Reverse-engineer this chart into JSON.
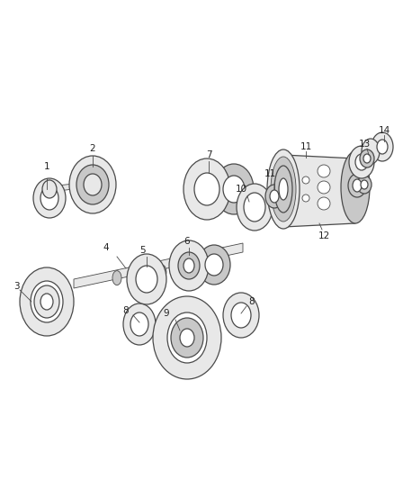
{
  "bg_color": "#ffffff",
  "line_color": "#4a4a4a",
  "fill_light": "#e8e8e8",
  "fill_mid": "#c8c8c8",
  "fill_dark": "#999999",
  "figsize": [
    4.38,
    5.33
  ],
  "dpi": 100
}
